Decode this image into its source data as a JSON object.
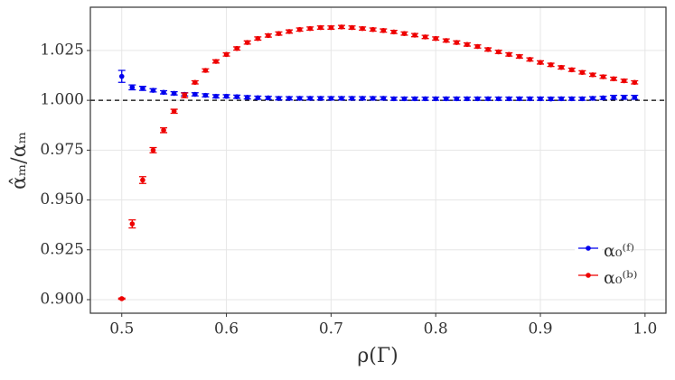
{
  "chart_data": {
    "type": "errorbar-scatter",
    "x_label": "ρ(Γ)",
    "y_label": "α̂ₘ/αₘ",
    "x": [
      0.5,
      0.51,
      0.52,
      0.53,
      0.54,
      0.55,
      0.56,
      0.57,
      0.58,
      0.59,
      0.6,
      0.61,
      0.62,
      0.63,
      0.64,
      0.65,
      0.66,
      0.67,
      0.68,
      0.69,
      0.7,
      0.71,
      0.72,
      0.73,
      0.74,
      0.75,
      0.76,
      0.77,
      0.78,
      0.79,
      0.8,
      0.81,
      0.82,
      0.83,
      0.84,
      0.85,
      0.86,
      0.87,
      0.88,
      0.89,
      0.9,
      0.91,
      0.92,
      0.93,
      0.94,
      0.95,
      0.96,
      0.97,
      0.98,
      0.99
    ],
    "series": [
      {
        "name": "α₀⁽ᶠ⁾",
        "color": "#0000ee",
        "values": [
          1.012,
          1.0065,
          1.006,
          1.005,
          1.004,
          1.0035,
          1.003,
          1.003,
          1.0025,
          1.002,
          1.002,
          1.0018,
          1.0015,
          1.0013,
          1.0012,
          1.001,
          1.001,
          1.001,
          1.001,
          1.001,
          1.001,
          1.001,
          1.001,
          1.001,
          1.001,
          1.001,
          1.0008,
          1.0008,
          1.0008,
          1.0008,
          1.0008,
          1.0008,
          1.0008,
          1.0008,
          1.0008,
          1.0008,
          1.0008,
          1.0008,
          1.0008,
          1.0008,
          1.0008,
          1.0007,
          1.0008,
          1.0008,
          1.0008,
          1.001,
          1.0012,
          1.0015,
          1.0015,
          1.0015
        ],
        "errors": [
          0.003,
          0.0012,
          0.001,
          0.0008,
          0.0008,
          0.0008,
          0.0008,
          0.0008,
          0.0008,
          0.0008,
          0.0008,
          0.0008,
          0.0008,
          0.0008,
          0.0008,
          0.0008,
          0.0008,
          0.0008,
          0.0008,
          0.0008,
          0.0008,
          0.0008,
          0.0008,
          0.0008,
          0.0008,
          0.0008,
          0.0008,
          0.0008,
          0.0008,
          0.0008,
          0.0008,
          0.0008,
          0.0008,
          0.0008,
          0.0008,
          0.0008,
          0.0008,
          0.0008,
          0.0008,
          0.0008,
          0.0008,
          0.0008,
          0.0008,
          0.0008,
          0.0008,
          0.0008,
          0.0008,
          0.001,
          0.001,
          0.001
        ]
      },
      {
        "name": "α₀⁽ᵇ⁾",
        "color": "#ee0000",
        "values": [
          0.9005,
          0.938,
          0.96,
          0.975,
          0.985,
          0.9945,
          1.0025,
          1.009,
          1.015,
          1.0195,
          1.023,
          1.026,
          1.029,
          1.031,
          1.0325,
          1.0335,
          1.0345,
          1.0355,
          1.036,
          1.0365,
          1.0365,
          1.0368,
          1.0365,
          1.036,
          1.0355,
          1.035,
          1.0343,
          1.0335,
          1.0327,
          1.0318,
          1.031,
          1.03,
          1.029,
          1.028,
          1.027,
          1.0255,
          1.0243,
          1.023,
          1.022,
          1.0205,
          1.019,
          1.0178,
          1.0165,
          1.0153,
          1.014,
          1.0128,
          1.0118,
          1.0108,
          1.0098,
          1.009
        ],
        "errors": [
          0.0003,
          0.002,
          0.0017,
          0.0013,
          0.0012,
          0.001,
          0.0012,
          0.0008,
          0.0008,
          0.0008,
          0.0008,
          0.0008,
          0.0008,
          0.0008,
          0.0008,
          0.0008,
          0.0008,
          0.0008,
          0.0008,
          0.0008,
          0.0008,
          0.0008,
          0.0008,
          0.0008,
          0.0008,
          0.0008,
          0.0008,
          0.0008,
          0.0008,
          0.0008,
          0.0008,
          0.0008,
          0.0008,
          0.0008,
          0.0008,
          0.0008,
          0.0008,
          0.0008,
          0.0008,
          0.0008,
          0.0008,
          0.0008,
          0.0008,
          0.0008,
          0.0008,
          0.0008,
          0.0008,
          0.0008,
          0.0008,
          0.0008
        ]
      }
    ],
    "xlim": [
      0.47,
      1.02
    ],
    "ylim": [
      0.8932,
      1.0467
    ],
    "xticks": [
      0.5,
      0.6,
      0.7,
      0.8,
      0.9,
      {
        "value": 1,
        "label": "1.0"
      }
    ],
    "yticks": [
      {
        "value": 0.9,
        "label": "0.900"
      },
      {
        "value": 0.925,
        "label": "0.925"
      },
      {
        "value": 0.95,
        "label": "0.950"
      },
      {
        "value": 0.975,
        "label": "0.975"
      },
      {
        "value": 1,
        "label": "1.000"
      },
      {
        "value": 1.025,
        "label": "1.025"
      }
    ],
    "hline": 1,
    "grid": true,
    "legend": "right"
  }
}
